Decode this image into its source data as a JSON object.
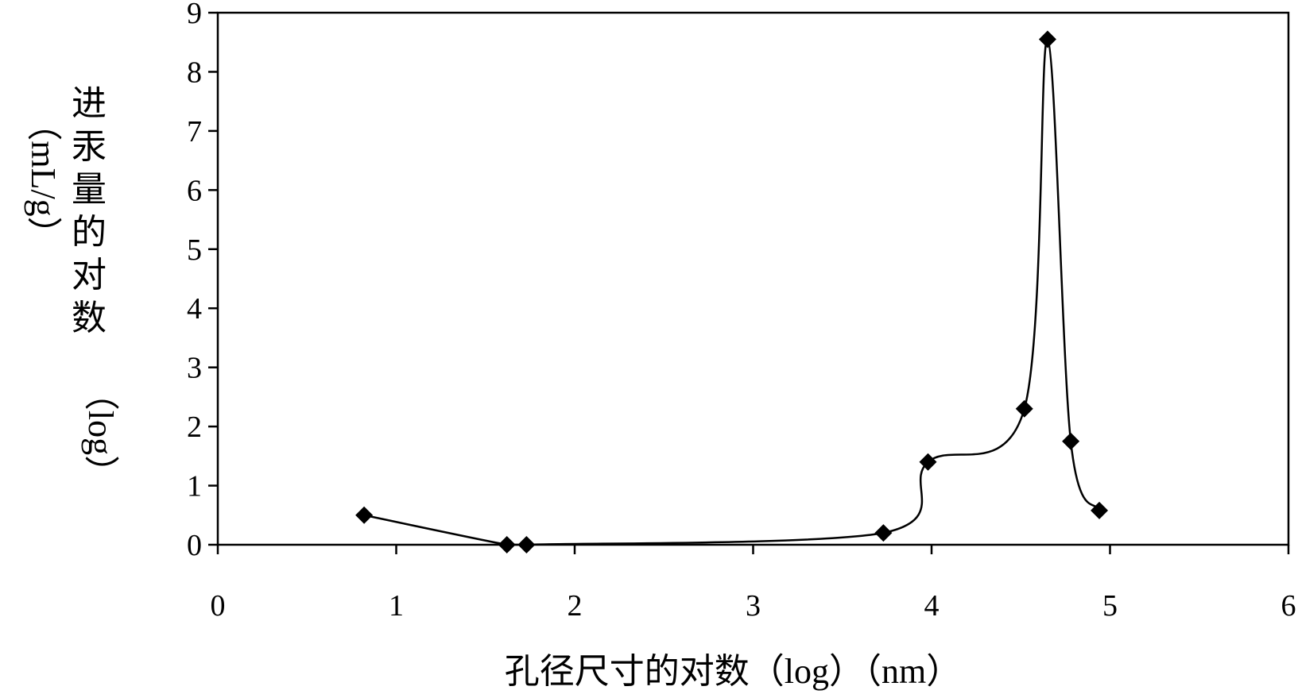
{
  "chart_data": {
    "type": "scatter",
    "title": "",
    "xlabel": "孔径尺寸的对数（log）（nm）",
    "ylabel": "进汞量的对数（log）（mL/g）",
    "ylabel_lines": [
      "进汞量的对数",
      "（log）",
      "（mL/g）"
    ],
    "xlim": [
      0,
      6
    ],
    "ylim": [
      0,
      9
    ],
    "xticks": [
      "0",
      "1",
      "2",
      "3",
      "4",
      "5",
      "6"
    ],
    "yticks": [
      "0",
      "1",
      "2",
      "3",
      "4",
      "5",
      "6",
      "7",
      "8",
      "9"
    ],
    "grid": false,
    "legend": "none",
    "marker": "diamond",
    "line": "smooth",
    "color": "#000000",
    "series": [
      {
        "x": [
          0.82,
          1.62,
          1.73,
          3.73,
          3.98,
          4.52,
          4.65,
          4.78,
          4.94
        ],
        "y": [
          0.5,
          0.0,
          0.0,
          0.2,
          1.4,
          2.3,
          8.55,
          1.75,
          0.58
        ]
      }
    ]
  }
}
